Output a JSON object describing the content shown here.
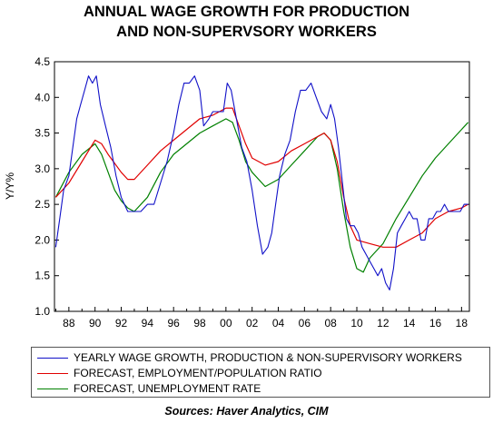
{
  "title_line1": "ANNUAL WAGE GROWTH FOR PRODUCTION",
  "title_line2": "AND NON-SUPERVSORY WORKERS",
  "source": "Sources:  Haver Analytics, CIM",
  "chart_data": {
    "type": "line",
    "title": "ANNUAL WAGE GROWTH FOR PRODUCTION AND NON-SUPERVSORY WORKERS",
    "ylabel": "Y/Y%",
    "xlabel": "",
    "xlim": [
      1986.9,
      2018.6
    ],
    "ylim": [
      1.0,
      4.5
    ],
    "yticks": [
      1.0,
      1.5,
      2.0,
      2.5,
      3.0,
      3.5,
      4.0,
      4.5
    ],
    "ytick_labels": [
      "1.0",
      "1.5",
      "2.0",
      "2.5",
      "3.0",
      "3.5",
      "4.0",
      "4.5"
    ],
    "xticks": [
      1988,
      1990,
      1992,
      1994,
      1996,
      1998,
      2000,
      2002,
      2004,
      2006,
      2008,
      2010,
      2012,
      2014,
      2016,
      2018
    ],
    "xtick_labels": [
      "88",
      "90",
      "92",
      "94",
      "96",
      "98",
      "00",
      "02",
      "04",
      "06",
      "08",
      "10",
      "12",
      "14",
      "16",
      "18"
    ],
    "grid": false,
    "legend_position": "bottom",
    "series": [
      {
        "name": "YEARLY WAGE GROWTH, PRODUCTION & NON-SUPERVISORY WORKERS",
        "color": "#1010c8",
        "x": [
          1987.0,
          1987.3,
          1987.6,
          1988.0,
          1988.3,
          1988.6,
          1988.9,
          1989.2,
          1989.5,
          1989.8,
          1990.1,
          1990.4,
          1990.8,
          1991.2,
          1991.6,
          1992.0,
          1992.5,
          1993.0,
          1993.5,
          1994.0,
          1994.5,
          1995.0,
          1995.5,
          1996.0,
          1996.4,
          1996.8,
          1997.2,
          1997.6,
          1998.0,
          1998.3,
          1998.7,
          1999.0,
          1999.4,
          1999.8,
          2000.1,
          2000.4,
          2000.8,
          2001.2,
          2001.6,
          2002.0,
          2002.4,
          2002.8,
          2003.2,
          2003.5,
          2003.8,
          2004.1,
          2004.5,
          2004.9,
          2005.3,
          2005.7,
          2006.1,
          2006.5,
          2006.9,
          2007.3,
          2007.7,
          2008.0,
          2008.3,
          2008.6,
          2008.9,
          2009.2,
          2009.5,
          2009.8,
          2010.1,
          2010.4,
          2010.7,
          2011.0,
          2011.3,
          2011.6,
          2011.9,
          2012.2,
          2012.5,
          2012.8,
          2013.1,
          2013.4,
          2013.7,
          2014.0,
          2014.3,
          2014.6,
          2014.9,
          2015.2,
          2015.5,
          2015.8,
          2016.1,
          2016.4,
          2016.7,
          2017.0,
          2017.3,
          2017.6,
          2017.9,
          2018.2,
          2018.5
        ],
        "y": [
          1.9,
          2.3,
          2.7,
          2.9,
          3.3,
          3.7,
          3.9,
          4.1,
          4.3,
          4.2,
          4.3,
          3.9,
          3.6,
          3.3,
          2.9,
          2.6,
          2.4,
          2.4,
          2.4,
          2.5,
          2.5,
          2.8,
          3.1,
          3.5,
          3.9,
          4.2,
          4.2,
          4.3,
          4.1,
          3.6,
          3.7,
          3.8,
          3.8,
          3.8,
          4.2,
          4.1,
          3.7,
          3.3,
          3.1,
          2.7,
          2.2,
          1.8,
          1.9,
          2.1,
          2.5,
          2.9,
          3.2,
          3.4,
          3.8,
          4.1,
          4.1,
          4.2,
          4.0,
          3.8,
          3.7,
          3.9,
          3.7,
          3.3,
          2.8,
          2.3,
          2.2,
          2.2,
          2.1,
          1.9,
          1.8,
          1.7,
          1.6,
          1.5,
          1.6,
          1.4,
          1.3,
          1.6,
          2.1,
          2.2,
          2.3,
          2.4,
          2.3,
          2.3,
          2.0,
          2.0,
          2.3,
          2.3,
          2.4,
          2.4,
          2.5,
          2.4,
          2.4,
          2.4,
          2.4,
          2.5,
          2.5
        ]
      },
      {
        "name": "FORECAST, EMPLOYMENT/POPULATION RATIO",
        "color": "#e00000",
        "x": [
          1987.0,
          1988.0,
          1989.0,
          1990.0,
          1990.5,
          1991.0,
          1992.0,
          1992.5,
          1993.0,
          1994.0,
          1995.0,
          1996.0,
          1997.0,
          1998.0,
          1999.0,
          2000.0,
          2000.5,
          2001.0,
          2001.5,
          2002.0,
          2003.0,
          2004.0,
          2005.0,
          2006.0,
          2007.0,
          2007.5,
          2008.0,
          2008.5,
          2009.0,
          2009.5,
          2010.0,
          2011.0,
          2012.0,
          2013.0,
          2014.0,
          2015.0,
          2016.0,
          2017.0,
          2018.0,
          2018.5
        ],
        "y": [
          2.6,
          2.8,
          3.1,
          3.4,
          3.35,
          3.2,
          2.95,
          2.85,
          2.85,
          3.05,
          3.25,
          3.4,
          3.55,
          3.7,
          3.75,
          3.85,
          3.85,
          3.6,
          3.35,
          3.15,
          3.05,
          3.1,
          3.25,
          3.35,
          3.45,
          3.5,
          3.4,
          3.1,
          2.6,
          2.2,
          2.0,
          1.95,
          1.9,
          1.9,
          2.0,
          2.1,
          2.3,
          2.4,
          2.45,
          2.5
        ]
      },
      {
        "name": "FORECAST, UNEMPLOYMENT RATE",
        "color": "#008000",
        "x": [
          1987.0,
          1988.0,
          1989.0,
          1990.0,
          1990.5,
          1991.0,
          1991.5,
          1992.0,
          1992.5,
          1993.0,
          1994.0,
          1995.0,
          1996.0,
          1997.0,
          1998.0,
          1999.0,
          2000.0,
          2000.5,
          2001.0,
          2001.5,
          2002.0,
          2003.0,
          2004.0,
          2005.0,
          2006.0,
          2007.0,
          2007.5,
          2008.0,
          2008.5,
          2009.0,
          2009.5,
          2010.0,
          2010.5,
          2011.0,
          2012.0,
          2013.0,
          2014.0,
          2015.0,
          2016.0,
          2017.0,
          2018.0,
          2018.5
        ],
        "y": [
          2.6,
          2.95,
          3.2,
          3.35,
          3.2,
          2.95,
          2.7,
          2.55,
          2.45,
          2.4,
          2.6,
          2.95,
          3.2,
          3.35,
          3.5,
          3.6,
          3.7,
          3.65,
          3.4,
          3.1,
          2.95,
          2.75,
          2.85,
          3.05,
          3.25,
          3.45,
          3.5,
          3.4,
          3.0,
          2.4,
          1.9,
          1.6,
          1.55,
          1.75,
          1.95,
          2.3,
          2.6,
          2.9,
          3.15,
          3.35,
          3.55,
          3.65
        ]
      }
    ]
  }
}
